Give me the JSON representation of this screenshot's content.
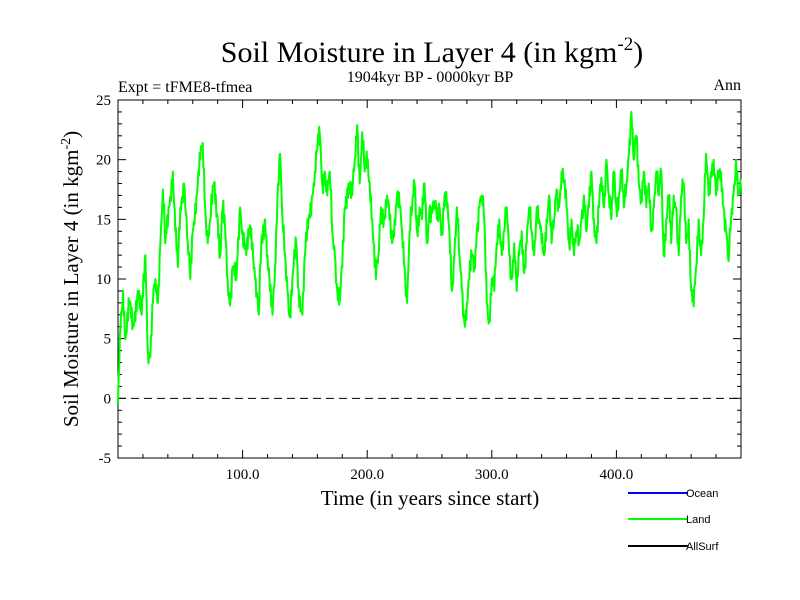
{
  "chart_data": {
    "type": "line",
    "title": "Soil Moisture in Layer 4 (in kgm",
    "title_exponent": "-2",
    "title_suffix": ")",
    "subtitle": "1904kyr BP - 0000kyr BP",
    "expt_label": "Expt = tFME8-tfmea",
    "season_label": "Ann",
    "xlabel": "Time (in years since start)",
    "ylabel": "Soil Moisture in Layer 4 (in kgm",
    "ylabel_exponent": "-2",
    "ylabel_suffix": ")",
    "xlim": [
      0,
      500
    ],
    "ylim": [
      -5,
      25
    ],
    "xticks": [
      100,
      200,
      300,
      400
    ],
    "xtick_labels": [
      "100.0",
      "200.0",
      "300.0",
      "400.0"
    ],
    "yticks": [
      -5,
      0,
      5,
      10,
      15,
      20,
      25
    ],
    "ytick_labels": [
      "-5",
      "0",
      "5",
      "10",
      "15",
      "20",
      "25"
    ],
    "reference_line": {
      "y": 0,
      "style": "dashed"
    },
    "legend": [
      {
        "name": "Ocean",
        "color": "#0000ff"
      },
      {
        "name": "Land",
        "color": "#00ff00"
      },
      {
        "name": "AllSurf",
        "color": "#000000"
      }
    ],
    "series": [
      {
        "name": "Land",
        "color": "#00ff00",
        "anchors": [
          [
            0,
            -0.5
          ],
          [
            2,
            6
          ],
          [
            4,
            9
          ],
          [
            6,
            5
          ],
          [
            9,
            8
          ],
          [
            12,
            6
          ],
          [
            16,
            9
          ],
          [
            19,
            7
          ],
          [
            22,
            12
          ],
          [
            24,
            4
          ],
          [
            26,
            3.5
          ],
          [
            28,
            8
          ],
          [
            30,
            10
          ],
          [
            32,
            8
          ],
          [
            34,
            13
          ],
          [
            36,
            17.5
          ],
          [
            38,
            13
          ],
          [
            41,
            16
          ],
          [
            44,
            19
          ],
          [
            46,
            14
          ],
          [
            48,
            11
          ],
          [
            50,
            16
          ],
          [
            53,
            18
          ],
          [
            56,
            13
          ],
          [
            58,
            10
          ],
          [
            60,
            14
          ],
          [
            63,
            17
          ],
          [
            66,
            20
          ],
          [
            68,
            21.4
          ],
          [
            70,
            16
          ],
          [
            72,
            13
          ],
          [
            74,
            15
          ],
          [
            77,
            18
          ],
          [
            80,
            15
          ],
          [
            82,
            12
          ],
          [
            84,
            16
          ],
          [
            86,
            14
          ],
          [
            88,
            10
          ],
          [
            90,
            7.8
          ],
          [
            92,
            11
          ],
          [
            95,
            10
          ],
          [
            98,
            16
          ],
          [
            100,
            14
          ],
          [
            103,
            12
          ],
          [
            106,
            14.5
          ],
          [
            108,
            13
          ],
          [
            110,
            10
          ],
          [
            113,
            7
          ],
          [
            115,
            13
          ],
          [
            118,
            15
          ],
          [
            120,
            12
          ],
          [
            122,
            9
          ],
          [
            124,
            7
          ],
          [
            126,
            11
          ],
          [
            128,
            17
          ],
          [
            130,
            20.5
          ],
          [
            132,
            15
          ],
          [
            134,
            12
          ],
          [
            136,
            9
          ],
          [
            138,
            6.8
          ],
          [
            140,
            10
          ],
          [
            143,
            13
          ],
          [
            145,
            9
          ],
          [
            148,
            7
          ],
          [
            150,
            12
          ],
          [
            153,
            15
          ],
          [
            156,
            17
          ],
          [
            158,
            19
          ],
          [
            160,
            21
          ],
          [
            162,
            22
          ],
          [
            164,
            18
          ],
          [
            166,
            19
          ],
          [
            168,
            17
          ],
          [
            170,
            19
          ],
          [
            172,
            14
          ],
          [
            174,
            12
          ],
          [
            176,
            9
          ],
          [
            178,
            8.2
          ],
          [
            180,
            11
          ],
          [
            182,
            16
          ],
          [
            185,
            18
          ],
          [
            188,
            17
          ],
          [
            190,
            20
          ],
          [
            192,
            22.9
          ],
          [
            194,
            18
          ],
          [
            196,
            22.3
          ],
          [
            198,
            19
          ],
          [
            200,
            20
          ],
          [
            203,
            17
          ],
          [
            205,
            13
          ],
          [
            207,
            10
          ],
          [
            209,
            12
          ],
          [
            211,
            16
          ],
          [
            214,
            15
          ],
          [
            216,
            17
          ],
          [
            218,
            15
          ],
          [
            220,
            13
          ],
          [
            222,
            15
          ],
          [
            224,
            17
          ],
          [
            226,
            16
          ],
          [
            228,
            14
          ],
          [
            230,
            11
          ],
          [
            232,
            8
          ],
          [
            234,
            14
          ],
          [
            236,
            16
          ],
          [
            238,
            18
          ],
          [
            240,
            14
          ],
          [
            242,
            16
          ],
          [
            244,
            15
          ],
          [
            246,
            18
          ],
          [
            248,
            13
          ],
          [
            250,
            16
          ],
          [
            252,
            15.5
          ],
          [
            254,
            16.5
          ],
          [
            256,
            15
          ],
          [
            258,
            16
          ],
          [
            260,
            14
          ],
          [
            262,
            17
          ],
          [
            264,
            16
          ],
          [
            266,
            14
          ],
          [
            268,
            9
          ],
          [
            270,
            12
          ],
          [
            272,
            16
          ],
          [
            274,
            12
          ],
          [
            276,
            9
          ],
          [
            278,
            6.3
          ],
          [
            280,
            8
          ],
          [
            282,
            10
          ],
          [
            284,
            12
          ],
          [
            286,
            11
          ],
          [
            288,
            14
          ],
          [
            290,
            16
          ],
          [
            292,
            17
          ],
          [
            294,
            15
          ],
          [
            296,
            8
          ],
          [
            298,
            6.5
          ],
          [
            300,
            10
          ],
          [
            302,
            9
          ],
          [
            304,
            13
          ],
          [
            306,
            15
          ],
          [
            308,
            12
          ],
          [
            310,
            14
          ],
          [
            312,
            16
          ],
          [
            314,
            12
          ],
          [
            316,
            10
          ],
          [
            318,
            13
          ],
          [
            320,
            9
          ],
          [
            322,
            12
          ],
          [
            324,
            14
          ],
          [
            326,
            10.5
          ],
          [
            328,
            13
          ],
          [
            330,
            16
          ],
          [
            332,
            14
          ],
          [
            334,
            12
          ],
          [
            336,
            16
          ],
          [
            338,
            15
          ],
          [
            340,
            13
          ],
          [
            342,
            12
          ],
          [
            344,
            15
          ],
          [
            346,
            17
          ],
          [
            348,
            13
          ],
          [
            350,
            15
          ],
          [
            352,
            17.5
          ],
          [
            354,
            16
          ],
          [
            356,
            19
          ],
          [
            358,
            18
          ],
          [
            360,
            16
          ],
          [
            362,
            13
          ],
          [
            364,
            15
          ],
          [
            366,
            12
          ],
          [
            368,
            14
          ],
          [
            370,
            13
          ],
          [
            372,
            15
          ],
          [
            374,
            17
          ],
          [
            376,
            14
          ],
          [
            378,
            16
          ],
          [
            380,
            19
          ],
          [
            382,
            15
          ],
          [
            384,
            13
          ],
          [
            386,
            16
          ],
          [
            388,
            18.5
          ],
          [
            390,
            16
          ],
          [
            392,
            20
          ],
          [
            394,
            17
          ],
          [
            396,
            15
          ],
          [
            398,
            19
          ],
          [
            400,
            16
          ],
          [
            402,
            17
          ],
          [
            404,
            19
          ],
          [
            406,
            16
          ],
          [
            408,
            18
          ],
          [
            410,
            20.5
          ],
          [
            412,
            24
          ],
          [
            414,
            20
          ],
          [
            416,
            22
          ],
          [
            418,
            18
          ],
          [
            420,
            17
          ],
          [
            422,
            19
          ],
          [
            424,
            16
          ],
          [
            426,
            18
          ],
          [
            428,
            14
          ],
          [
            430,
            16
          ],
          [
            432,
            19
          ],
          [
            434,
            17
          ],
          [
            436,
            19
          ],
          [
            438,
            12
          ],
          [
            440,
            15
          ],
          [
            442,
            17
          ],
          [
            444,
            13
          ],
          [
            446,
            17
          ],
          [
            448,
            16
          ],
          [
            450,
            12
          ],
          [
            452,
            17
          ],
          [
            454,
            18
          ],
          [
            456,
            13
          ],
          [
            458,
            15
          ],
          [
            460,
            9
          ],
          [
            462,
            7.7
          ],
          [
            464,
            11
          ],
          [
            466,
            15
          ],
          [
            468,
            12
          ],
          [
            470,
            15
          ],
          [
            472,
            20.5
          ],
          [
            474,
            17
          ],
          [
            476,
            19
          ],
          [
            478,
            20
          ],
          [
            480,
            17
          ],
          [
            482,
            18.5
          ],
          [
            484,
            19
          ],
          [
            486,
            16
          ],
          [
            488,
            14
          ],
          [
            490,
            11.5
          ],
          [
            492,
            15
          ],
          [
            494,
            17
          ],
          [
            496,
            20
          ],
          [
            498,
            17
          ],
          [
            500,
            17.5
          ]
        ]
      }
    ]
  }
}
